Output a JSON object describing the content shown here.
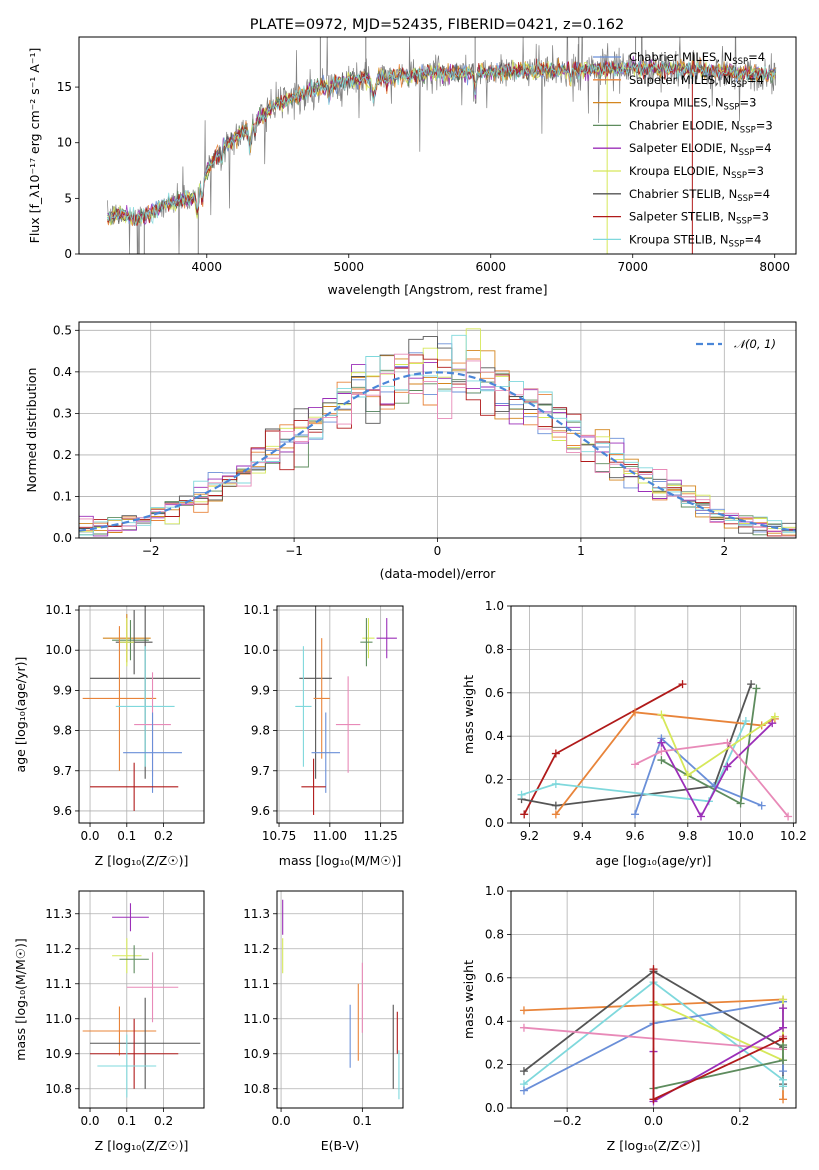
{
  "figure_title": "PLATE=0972, MJD=52435, FIBERID=0421, z=0.162",
  "colors": {
    "Chabrier MILES": "#6a8fd8",
    "Salpeter MILES": "#e8843a",
    "Kroupa MILES": "#d4861f",
    "Chabrier ELODIE": "#5e8c5e",
    "Salpeter ELODIE": "#9b2fb8",
    "Kroupa ELODIE": "#d6e85a",
    "Chabrier STELIB": "#555555",
    "Salpeter STELIB": "#b01a1a",
    "Kroupa STELIB": "#7fd8dc",
    "extra": "#e88ab8",
    "data": "#808080",
    "normal": "#4a86d8"
  },
  "chart_data": [
    {
      "id": "spectrum",
      "type": "line",
      "title": "PLATE=0972, MJD=52435, FIBERID=0421, z=0.162",
      "xlabel": "wavelength [Angstrom, rest frame]",
      "ylabel": "Flux [f_λ10⁻¹⁷ erg cm⁻² s⁻¹ A⁻¹]",
      "xlim": [
        3100,
        8150
      ],
      "ylim": [
        0,
        19.5
      ],
      "xticks": [
        4000,
        5000,
        6000,
        7000,
        8000
      ],
      "yticks": [
        0,
        5,
        10,
        15
      ],
      "grid": false,
      "legend_position": "top-right",
      "continuum": {
        "x": [
          3300,
          3400,
          3500,
          3600,
          3700,
          3800,
          3900,
          4000,
          4100,
          4200,
          4300,
          4400,
          4500,
          4600,
          4700,
          4800,
          4900,
          5000,
          5200,
          5400,
          5600,
          5800,
          6000,
          6200,
          6400,
          6600,
          6800,
          7000,
          7200,
          7400,
          7600,
          7800,
          8000
        ],
        "y": [
          3.3,
          3.6,
          3.2,
          3.6,
          4.5,
          4.8,
          5.0,
          7.5,
          9.5,
          10.5,
          11.5,
          12.5,
          13.5,
          14.0,
          14.5,
          15.0,
          15.3,
          15.5,
          16.0,
          16.0,
          16.3,
          16.3,
          16.3,
          16.5,
          16.5,
          16.6,
          16.6,
          16.7,
          16.7,
          16.5,
          16.4,
          16.2,
          16.2
        ]
      },
      "series": [
        {
          "name": "Chabrier MILES, N_SSP=4",
          "label_main": "Chabrier MILES, N",
          "label_sub": "SSP",
          "label_tail": "=4",
          "color": "#6a8fd8"
        },
        {
          "name": "Salpeter MILES, N_SSP=4",
          "label_main": "Salpeter MILES, N",
          "label_sub": "SSP",
          "label_tail": "=4",
          "color": "#e8843a"
        },
        {
          "name": "Kroupa MILES, N_SSP=3",
          "label_main": "Kroupa MILES, N",
          "label_sub": "SSP",
          "label_tail": "=3",
          "color": "#d4861f"
        },
        {
          "name": "Chabrier ELODIE, N_SSP=3",
          "label_main": "Chabrier ELODIE, N",
          "label_sub": "SSP",
          "label_tail": "=3",
          "color": "#5e8c5e"
        },
        {
          "name": "Salpeter ELODIE, N_SSP=4",
          "label_main": "Salpeter ELODIE, N",
          "label_sub": "SSP",
          "label_tail": "=4",
          "color": "#9b2fb8"
        },
        {
          "name": "Kroupa ELODIE, N_SSP=3",
          "label_main": "Kroupa ELODIE, N",
          "label_sub": "SSP",
          "label_tail": "=3",
          "color": "#d6e85a"
        },
        {
          "name": "Chabrier STELIB, N_SSP=4",
          "label_main": "Chabrier STELIB, N",
          "label_sub": "SSP",
          "label_tail": "=4",
          "color": "#555555"
        },
        {
          "name": "Salpeter STELIB, N_SSP=3",
          "label_main": "Salpeter STELIB, N",
          "label_sub": "SSP",
          "label_tail": "=3",
          "color": "#b01a1a"
        },
        {
          "name": "Kroupa STELIB, N_SSP=4",
          "label_main": "Kroupa STELIB, N",
          "label_sub": "SSP",
          "label_tail": "=4",
          "color": "#7fd8dc"
        }
      ]
    },
    {
      "id": "residuals",
      "type": "line",
      "xlabel": "(data-model)/error",
      "ylabel": "Normed distribution",
      "xlim": [
        -2.5,
        2.5
      ],
      "ylim": [
        0,
        0.52
      ],
      "xticks": [
        -2,
        -1,
        0,
        1,
        2
      ],
      "yticks": [
        0.0,
        0.1,
        0.2,
        0.3,
        0.4,
        0.5
      ],
      "grid": true,
      "legend_position": "top-right",
      "legend_label": "𝒩(0, 1)",
      "bin_width": 0.1,
      "bin_start": -2.5,
      "colors": [
        "#6a8fd8",
        "#e8843a",
        "#d4861f",
        "#5e8c5e",
        "#9b2fb8",
        "#d6e85a",
        "#555555",
        "#b01a1a",
        "#7fd8dc",
        "#e88ab8"
      ]
    },
    {
      "id": "age_vs_Z",
      "type": "scatter",
      "xlabel": "Z [log₁₀(Z/Z☉)]",
      "ylabel": "age  [log₁₀(age/yr)]",
      "xlim": [
        -0.03,
        0.31
      ],
      "ylim": [
        9.57,
        10.11
      ],
      "xticks": [
        0.0,
        0.1,
        0.2
      ],
      "yticks": [
        9.6,
        9.7,
        9.8,
        9.9,
        10.0,
        10.1
      ],
      "grid": true,
      "points": [
        {
          "x": 0.1,
          "xerr": 0.065,
          "y": 10.03,
          "yerr": 0.06,
          "color": "#d4861f"
        },
        {
          "x": 0.11,
          "xerr": 0.05,
          "y": 10.025,
          "yerr": 0.05,
          "color": "#5e8c5e"
        },
        {
          "x": 0.12,
          "xerr": 0.05,
          "y": 10.02,
          "yerr": 0.08,
          "color": "#555555"
        },
        {
          "x": 0.1,
          "xerr": 0.02,
          "y": 10.02,
          "yerr": 0.06,
          "color": "#d6e85a"
        },
        {
          "x": 0.15,
          "xerr": 0.15,
          "y": 9.93,
          "yerr": 0.25,
          "color": "#555555"
        },
        {
          "x": 0.08,
          "xerr": 0.1,
          "y": 9.88,
          "yerr": 0.18,
          "color": "#e8843a"
        },
        {
          "x": 0.15,
          "xerr": 0.08,
          "y": 9.86,
          "yerr": 0.15,
          "color": "#7fd8dc"
        },
        {
          "x": 0.17,
          "xerr": 0.05,
          "y": 9.815,
          "yerr": 0.13,
          "color": "#e88ab8"
        },
        {
          "x": 0.17,
          "xerr": 0.08,
          "y": 9.745,
          "yerr": 0.1,
          "color": "#6a8fd8"
        },
        {
          "x": 0.12,
          "xerr": 0.12,
          "y": 9.66,
          "yerr": 0.06,
          "color": "#b01a1a"
        }
      ]
    },
    {
      "id": "age_vs_mass",
      "type": "scatter",
      "xlabel": "mass [log₁₀(M/M☉)]",
      "xlim": [
        10.74,
        11.36
      ],
      "ylim": [
        9.57,
        10.11
      ],
      "xticks": [
        10.75,
        11.0,
        11.25
      ],
      "yticks": [
        9.6,
        9.7,
        9.8,
        9.9,
        10.0,
        10.1
      ],
      "grid": true,
      "points": [
        {
          "x": 11.19,
          "xerr": 0.03,
          "y": 10.03,
          "yerr": 0.05,
          "color": "#d6e85a"
        },
        {
          "x": 11.28,
          "xerr": 0.05,
          "y": 10.03,
          "yerr": 0.05,
          "color": "#9b2fb8"
        },
        {
          "x": 11.18,
          "xerr": 0.03,
          "y": 10.02,
          "yerr": 0.06,
          "color": "#5e8c5e"
        },
        {
          "x": 10.93,
          "xerr": 0.08,
          "y": 9.93,
          "yerr": 0.25,
          "color": "#555555"
        },
        {
          "x": 10.96,
          "xerr": 0.04,
          "y": 9.88,
          "yerr": 0.15,
          "color": "#e8843a"
        },
        {
          "x": 10.87,
          "xerr": 0.04,
          "y": 9.86,
          "yerr": 0.15,
          "color": "#7fd8dc"
        },
        {
          "x": 11.09,
          "xerr": 0.06,
          "y": 9.815,
          "yerr": 0.12,
          "color": "#e88ab8"
        },
        {
          "x": 10.98,
          "xerr": 0.07,
          "y": 9.745,
          "yerr": 0.1,
          "color": "#6a8fd8"
        },
        {
          "x": 10.92,
          "xerr": 0.06,
          "y": 9.66,
          "yerr": 0.07,
          "color": "#b01a1a"
        }
      ]
    },
    {
      "id": "weight_vs_age",
      "type": "line",
      "xlabel": "age  [log₁₀(age/yr)]",
      "ylabel": "mass weight",
      "xlim": [
        9.13,
        10.21
      ],
      "ylim": [
        0,
        1.0
      ],
      "xticks": [
        9.2,
        9.4,
        9.6,
        9.8,
        10.0,
        10.2
      ],
      "yticks": [
        0.0,
        0.2,
        0.4,
        0.6,
        0.8,
        1.0
      ],
      "grid": true,
      "series": [
        {
          "color": "#b01a1a",
          "x": [
            9.18,
            9.3,
            9.78
          ],
          "y": [
            0.04,
            0.32,
            0.64
          ]
        },
        {
          "color": "#555555",
          "x": [
            9.17,
            9.3,
            9.9,
            10.04
          ],
          "y": [
            0.11,
            0.08,
            0.17,
            0.64
          ]
        },
        {
          "color": "#e8843a",
          "x": [
            9.3,
            9.6,
            10.08,
            10.13
          ],
          "y": [
            0.04,
            0.51,
            0.45,
            0.48
          ]
        },
        {
          "color": "#7fd8dc",
          "x": [
            9.17,
            9.3,
            9.88,
            10.02
          ],
          "y": [
            0.13,
            0.18,
            0.1,
            0.47
          ]
        },
        {
          "color": "#6a8fd8",
          "x": [
            9.6,
            9.7,
            9.9,
            10.08
          ],
          "y": [
            0.04,
            0.39,
            0.17,
            0.08
          ]
        },
        {
          "color": "#5e8c5e",
          "x": [
            9.7,
            9.8,
            10.0,
            10.06
          ],
          "y": [
            0.29,
            0.22,
            0.09,
            0.62
          ]
        },
        {
          "color": "#d6e85a",
          "x": [
            9.7,
            9.8,
            10.13
          ],
          "y": [
            0.5,
            0.22,
            0.49
          ]
        },
        {
          "color": "#9b2fb8",
          "x": [
            9.7,
            9.85,
            9.95,
            10.12
          ],
          "y": [
            0.37,
            0.03,
            0.26,
            0.46
          ]
        },
        {
          "color": "#e88ab8",
          "x": [
            9.6,
            9.7,
            9.95,
            10.18
          ],
          "y": [
            0.27,
            0.33,
            0.37,
            0.03
          ]
        }
      ]
    },
    {
      "id": "mass_vs_Z",
      "type": "scatter",
      "xlabel": "Z [log₁₀(Z/Z☉)]",
      "ylabel": "mass [log₁₀(M/M☉)]",
      "xlim": [
        -0.03,
        0.31
      ],
      "ylim": [
        10.745,
        11.365
      ],
      "xticks": [
        0.0,
        0.1,
        0.2
      ],
      "yticks": [
        10.8,
        10.9,
        11.0,
        11.1,
        11.2,
        11.3
      ],
      "grid": true,
      "points": [
        {
          "x": 0.11,
          "xerr": 0.05,
          "y": 11.29,
          "yerr": 0.04,
          "color": "#9b2fb8"
        },
        {
          "x": 0.1,
          "xerr": 0.04,
          "y": 11.18,
          "yerr": 0.05,
          "color": "#d6e85a"
        },
        {
          "x": 0.12,
          "xerr": 0.04,
          "y": 11.17,
          "yerr": 0.04,
          "color": "#5e8c5e"
        },
        {
          "x": 0.17,
          "xerr": 0.07,
          "y": 11.09,
          "yerr": 0.1,
          "color": "#e88ab8"
        },
        {
          "x": 0.08,
          "xerr": 0.1,
          "y": 10.965,
          "yerr": 0.07,
          "color": "#e8843a"
        },
        {
          "x": 0.15,
          "xerr": 0.15,
          "y": 10.93,
          "yerr": 0.13,
          "color": "#555555"
        },
        {
          "x": 0.12,
          "xerr": 0.12,
          "y": 10.9,
          "yerr": 0.1,
          "color": "#b01a1a"
        },
        {
          "x": 0.1,
          "xerr": 0.08,
          "y": 10.865,
          "yerr": 0.09,
          "color": "#7fd8dc"
        }
      ]
    },
    {
      "id": "mass_vs_EBV",
      "type": "scatter",
      "xlabel": "E(B-V)",
      "xlim": [
        -0.005,
        0.15
      ],
      "ylim": [
        10.745,
        11.365
      ],
      "xticks": [
        0.0,
        0.1
      ],
      "yticks": [
        10.8,
        10.9,
        11.0,
        11.1,
        11.2,
        11.3
      ],
      "grid": true,
      "points": [
        {
          "x": 0.002,
          "xerr": 0,
          "y": 11.29,
          "yerr": 0.05,
          "color": "#9b2fb8"
        },
        {
          "x": 0.002,
          "xerr": 0,
          "y": 11.18,
          "yerr": 0.05,
          "color": "#d6e85a"
        },
        {
          "x": 0.085,
          "xerr": 0,
          "y": 10.95,
          "yerr": 0.09,
          "color": "#6a8fd8"
        },
        {
          "x": 0.095,
          "xerr": 0,
          "y": 10.99,
          "yerr": 0.11,
          "color": "#e8843a"
        },
        {
          "x": 0.1,
          "xerr": 0,
          "y": 11.06,
          "yerr": 0.1,
          "color": "#e88ab8"
        },
        {
          "x": 0.138,
          "xerr": 0,
          "y": 10.92,
          "yerr": 0.12,
          "color": "#555555"
        },
        {
          "x": 0.143,
          "xerr": 0,
          "y": 10.96,
          "yerr": 0.06,
          "color": "#b01a1a"
        },
        {
          "x": 0.145,
          "xerr": 0,
          "y": 10.84,
          "yerr": 0.07,
          "color": "#7fd8dc"
        }
      ]
    },
    {
      "id": "weight_vs_Z",
      "type": "line",
      "xlabel": "Z [log₁₀(Z/Z☉)]",
      "ylabel": "mass weight",
      "xlim": [
        -0.33,
        0.33
      ],
      "ylim": [
        0,
        1.0
      ],
      "xticks": [
        -0.2,
        0.0,
        0.2
      ],
      "yticks": [
        0.0,
        0.2,
        0.4,
        0.6,
        0.8,
        1.0
      ],
      "grid": true,
      "series": [
        {
          "color": "#e8843a",
          "x": [
            -0.3,
            0.3,
            0.3
          ],
          "y": [
            0.45,
            0.5,
            0.04
          ]
        },
        {
          "color": "#555555",
          "x": [
            -0.3,
            0.0,
            0.3,
            0.3
          ],
          "y": [
            0.17,
            0.63,
            0.28,
            0.11
          ]
        },
        {
          "color": "#7fd8dc",
          "x": [
            -0.3,
            0.0,
            0.3,
            0.3
          ],
          "y": [
            0.11,
            0.58,
            0.13,
            0.1
          ]
        },
        {
          "color": "#6a8fd8",
          "x": [
            -0.3,
            0.0,
            0.3,
            0.3
          ],
          "y": [
            0.08,
            0.39,
            0.49,
            0.17
          ]
        },
        {
          "color": "#e88ab8",
          "x": [
            -0.3,
            0.3,
            0.3
          ],
          "y": [
            0.37,
            0.27,
            0.33
          ]
        },
        {
          "color": "#d6e85a",
          "x": [
            0.0,
            0.3,
            0.3
          ],
          "y": [
            0.49,
            0.22,
            0.5
          ]
        },
        {
          "color": "#5e8c5e",
          "x": [
            0.0,
            0.3,
            0.3
          ],
          "y": [
            0.09,
            0.22,
            0.29
          ]
        },
        {
          "color": "#9b2fb8",
          "x": [
            0.0,
            0.0,
            0.3,
            0.3
          ],
          "y": [
            0.26,
            0.03,
            0.37,
            0.46
          ]
        },
        {
          "color": "#b01a1a",
          "x": [
            0.0,
            0.0,
            0.3,
            0.3
          ],
          "y": [
            0.64,
            0.04,
            0.32,
            0.32
          ]
        }
      ]
    }
  ]
}
